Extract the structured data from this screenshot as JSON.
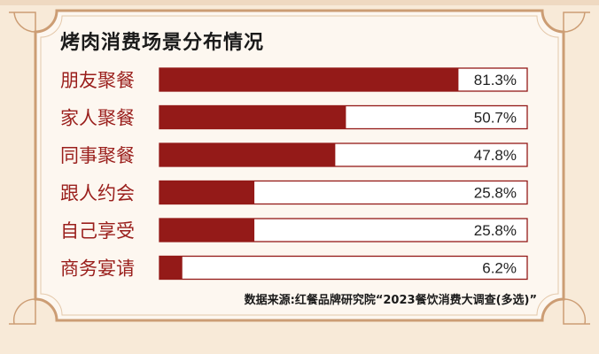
{
  "colors": {
    "bar": "#941a18",
    "frame": "#cc9d74",
    "panel": "#fdf7f0",
    "background": "#f8ead8"
  },
  "chart_data": {
    "type": "bar",
    "orientation": "horizontal",
    "title": "烤肉消费场景分布情况",
    "categories": [
      "朋友聚餐",
      "家人聚餐",
      "同事聚餐",
      "跟人约会",
      "自己享受",
      "商务宴请"
    ],
    "values": [
      81.3,
      50.7,
      47.8,
      25.8,
      25.8,
      6.2
    ],
    "value_labels": [
      "81.3%",
      "50.7%",
      "47.8%",
      "25.8%",
      "25.8%",
      "6.2%"
    ],
    "xlim": [
      0,
      100
    ],
    "unit": "%",
    "grid": false,
    "legend": "none"
  },
  "source": "数据来源:红餐品牌研究院“2023餐饮消费大调查(多选)”"
}
